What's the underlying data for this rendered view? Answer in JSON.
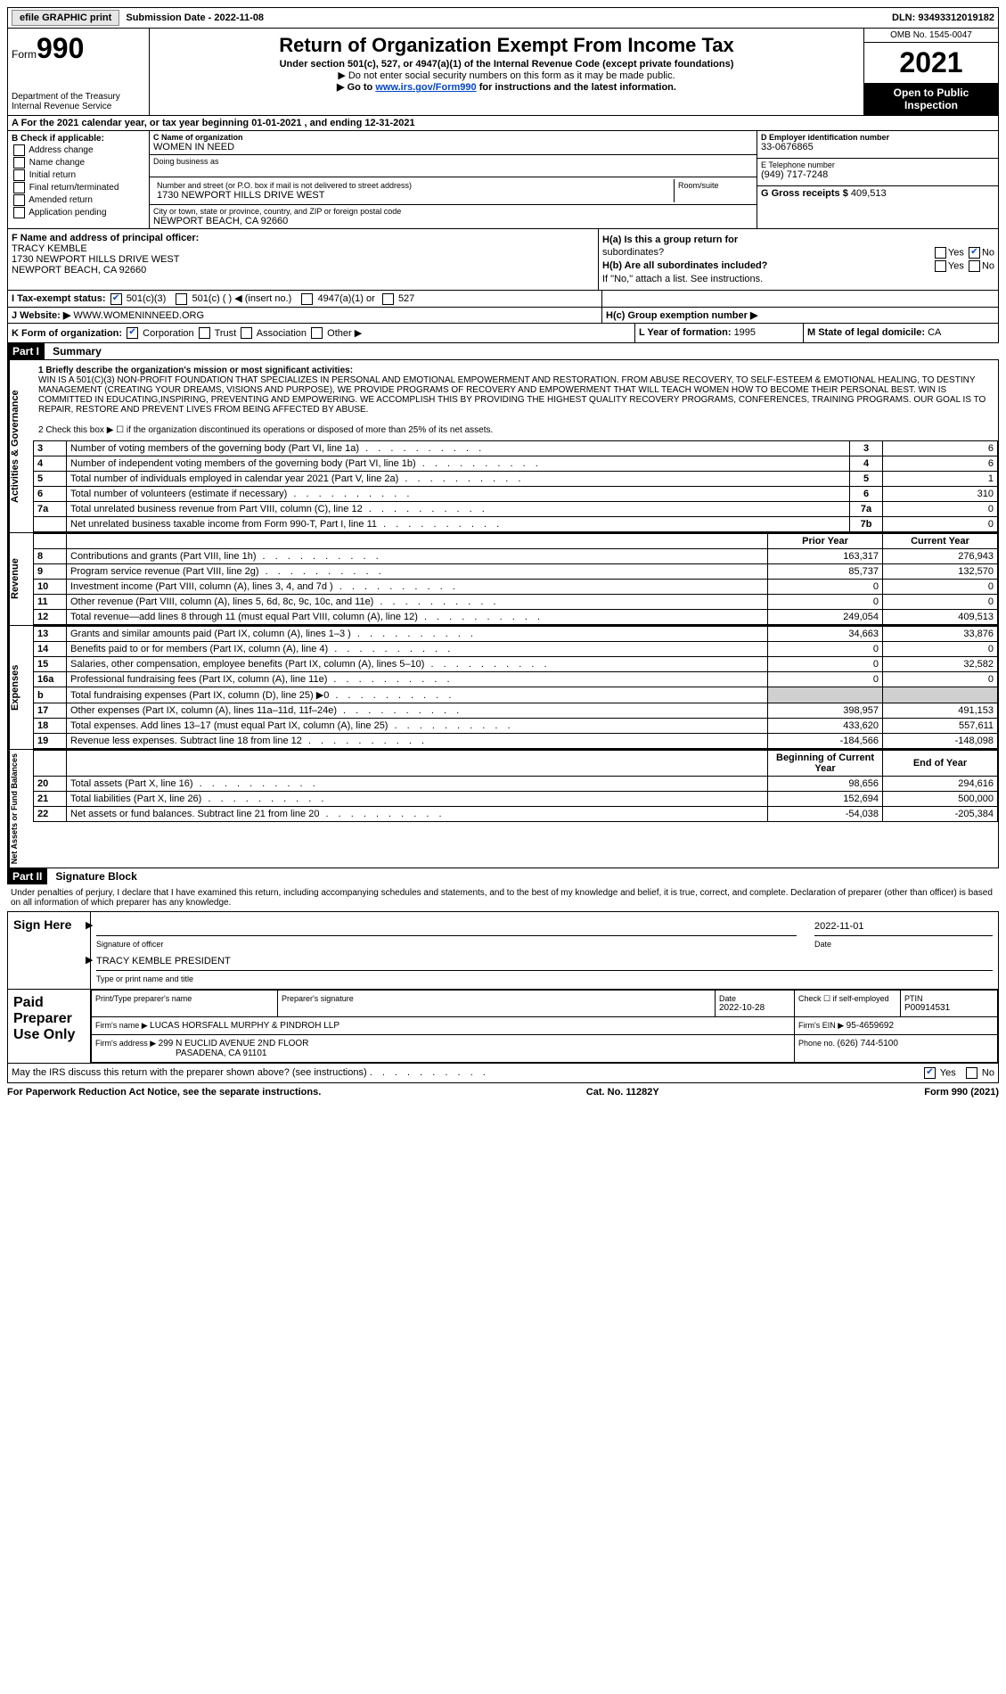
{
  "top_bar": {
    "efile": "efile GRAPHIC print",
    "submission_label": "Submission Date - ",
    "submission_date": "2022-11-08",
    "dln_label": "DLN: ",
    "dln": "93493312019182"
  },
  "header": {
    "form_label": "Form",
    "form_number": "990",
    "dept": "Department of the Treasury",
    "irs": "Internal Revenue Service",
    "title": "Return of Organization Exempt From Income Tax",
    "subtitle": "Under section 501(c), 527, or 4947(a)(1) of the Internal Revenue Code (except private foundations)",
    "note1": "▶ Do not enter social security numbers on this form as it may be made public.",
    "note2_pre": "▶ Go to ",
    "note2_link": "www.irs.gov/Form990",
    "note2_post": " for instructions and the latest information.",
    "omb": "OMB No. 1545-0047",
    "year": "2021",
    "inspection": "Open to Public Inspection"
  },
  "row_a": "A For the 2021 calendar year, or tax year beginning 01-01-2021   , and ending 12-31-2021",
  "col_b": {
    "label": "B Check if applicable:",
    "items": [
      "Address change",
      "Name change",
      "Initial return",
      "Final return/terminated",
      "Amended return",
      "Application pending"
    ]
  },
  "col_c": {
    "name_label": "C Name of organization",
    "name": "WOMEN IN NEED",
    "dba_label": "Doing business as",
    "dba": "",
    "addr_label": "Number and street (or P.O. box if mail is not delivered to street address)",
    "room_label": "Room/suite",
    "addr": "1730 NEWPORT HILLS DRIVE WEST",
    "city_label": "City or town, state or province, country, and ZIP or foreign postal code",
    "city": "NEWPORT BEACH, CA  92660"
  },
  "col_de": {
    "d_label": "D Employer identification number",
    "d_val": "33-0676865",
    "e_label": "E Telephone number",
    "e_val": "(949) 717-7248",
    "g_label": "G Gross receipts $ ",
    "g_val": "409,513"
  },
  "section_fh": {
    "f_label": "F Name and address of principal officer:",
    "f_name": "TRACY KEMBLE",
    "f_addr1": "1730 NEWPORT HILLS DRIVE WEST",
    "f_addr2": "NEWPORT BEACH, CA  92660",
    "ha_label": "H(a)  Is this a group return for",
    "ha_label2": "subordinates?",
    "hb_label": "H(b)  Are all subordinates included?",
    "hb_note": "If \"No,\" attach a list. See instructions."
  },
  "row_i": {
    "label": "I   Tax-exempt status:",
    "opt1": "501(c)(3)",
    "opt2": "501(c) (  ) ◀ (insert no.)",
    "opt3": "4947(a)(1) or",
    "opt4": "527"
  },
  "row_j": {
    "label": "J  Website: ▶",
    "val": "WWW.WOMENINNEED.ORG",
    "hc_label": "H(c)  Group exemption number ▶"
  },
  "row_klm": {
    "k_label": "K Form of organization:",
    "k_opts": [
      "Corporation",
      "Trust",
      "Association",
      "Other ▶"
    ],
    "l_label": "L Year of formation: ",
    "l_val": "1995",
    "m_label": "M State of legal domicile: ",
    "m_val": "CA"
  },
  "part1": {
    "header": "Part I",
    "title": "Summary",
    "mission_label": "1   Briefly describe the organization's mission or most significant activities:",
    "mission": "WIN IS A 501(C)(3) NON-PROFIT FOUNDATION THAT SPECIALIZES IN PERSONAL AND EMOTIONAL EMPOWERMENT AND RESTORATION. FROM ABUSE RECOVERY, TO SELF-ESTEEM & EMOTIONAL HEALING, TO DESTINY MANAGEMENT (CREATING YOUR DREAMS, VISIONS AND PURPOSE), WE PROVIDE PROGRAMS OF RECOVERY AND EMPOWERMENT THAT WILL TEACH WOMEN HOW TO BECOME THEIR PERSONAL BEST. WIN IS COMMITTED IN EDUCATING,INSPIRING, PREVENTING AND EMPOWERING. WE ACCOMPLISH THIS BY PROVIDING THE HIGHEST QUALITY RECOVERY PROGRAMS, CONFERENCES, TRAINING PROGRAMS. OUR GOAL IS TO REPAIR, RESTORE AND PREVENT LIVES FROM BEING AFFECTED BY ABUSE.",
    "line2": "2   Check this box ▶ ☐ if the organization discontinued its operations or disposed of more than 25% of its net assets.",
    "side_labels": {
      "activities": "Activities & Governance",
      "revenue": "Revenue",
      "expenses": "Expenses",
      "netassets": "Net Assets or Fund Balances"
    },
    "governance_rows": [
      {
        "n": "3",
        "desc": "Number of voting members of the governing body (Part VI, line 1a)",
        "box": "3",
        "val": "6"
      },
      {
        "n": "4",
        "desc": "Number of independent voting members of the governing body (Part VI, line 1b)",
        "box": "4",
        "val": "6"
      },
      {
        "n": "5",
        "desc": "Total number of individuals employed in calendar year 2021 (Part V, line 2a)",
        "box": "5",
        "val": "1"
      },
      {
        "n": "6",
        "desc": "Total number of volunteers (estimate if necessary)",
        "box": "6",
        "val": "310"
      },
      {
        "n": "7a",
        "desc": "Total unrelated business revenue from Part VIII, column (C), line 12",
        "box": "7a",
        "val": "0"
      },
      {
        "n": "",
        "desc": "Net unrelated business taxable income from Form 990-T, Part I, line 11",
        "box": "7b",
        "val": "0"
      }
    ],
    "prior_header": "Prior Year",
    "current_header": "Current Year",
    "revenue_rows": [
      {
        "n": "8",
        "desc": "Contributions and grants (Part VIII, line 1h)",
        "prior": "163,317",
        "curr": "276,943"
      },
      {
        "n": "9",
        "desc": "Program service revenue (Part VIII, line 2g)",
        "prior": "85,737",
        "curr": "132,570"
      },
      {
        "n": "10",
        "desc": "Investment income (Part VIII, column (A), lines 3, 4, and 7d )",
        "prior": "0",
        "curr": "0"
      },
      {
        "n": "11",
        "desc": "Other revenue (Part VIII, column (A), lines 5, 6d, 8c, 9c, 10c, and 11e)",
        "prior": "0",
        "curr": "0"
      },
      {
        "n": "12",
        "desc": "Total revenue—add lines 8 through 11 (must equal Part VIII, column (A), line 12)",
        "prior": "249,054",
        "curr": "409,513"
      }
    ],
    "expense_rows": [
      {
        "n": "13",
        "desc": "Grants and similar amounts paid (Part IX, column (A), lines 1–3 )",
        "prior": "34,663",
        "curr": "33,876"
      },
      {
        "n": "14",
        "desc": "Benefits paid to or for members (Part IX, column (A), line 4)",
        "prior": "0",
        "curr": "0"
      },
      {
        "n": "15",
        "desc": "Salaries, other compensation, employee benefits (Part IX, column (A), lines 5–10)",
        "prior": "0",
        "curr": "32,582"
      },
      {
        "n": "16a",
        "desc": "Professional fundraising fees (Part IX, column (A), line 11e)",
        "prior": "0",
        "curr": "0"
      },
      {
        "n": "b",
        "desc": "Total fundraising expenses (Part IX, column (D), line 25) ▶0",
        "prior": "",
        "curr": "",
        "grey": true
      },
      {
        "n": "17",
        "desc": "Other expenses (Part IX, column (A), lines 11a–11d, 11f–24e)",
        "prior": "398,957",
        "curr": "491,153"
      },
      {
        "n": "18",
        "desc": "Total expenses. Add lines 13–17 (must equal Part IX, column (A), line 25)",
        "prior": "433,620",
        "curr": "557,611"
      },
      {
        "n": "19",
        "desc": "Revenue less expenses. Subtract line 18 from line 12",
        "prior": "-184,566",
        "curr": "-148,098"
      }
    ],
    "begin_header": "Beginning of Current Year",
    "end_header": "End of Year",
    "netasset_rows": [
      {
        "n": "20",
        "desc": "Total assets (Part X, line 16)",
        "prior": "98,656",
        "curr": "294,616"
      },
      {
        "n": "21",
        "desc": "Total liabilities (Part X, line 26)",
        "prior": "152,694",
        "curr": "500,000"
      },
      {
        "n": "22",
        "desc": "Net assets or fund balances. Subtract line 21 from line 20",
        "prior": "-54,038",
        "curr": "-205,384"
      }
    ]
  },
  "part2": {
    "header": "Part II",
    "title": "Signature Block",
    "decl": "Under penalties of perjury, I declare that I have examined this return, including accompanying schedules and statements, and to the best of my knowledge and belief, it is true, correct, and complete. Declaration of preparer (other than officer) is based on all information of which preparer has any knowledge.",
    "sign_here": "Sign Here",
    "sig_officer": "Signature of officer",
    "sig_date_label": "Date",
    "sig_date": "2022-11-01",
    "officer_name": "TRACY KEMBLE  PRESIDENT",
    "officer_name_label": "Type or print name and title",
    "paid": "Paid Preparer Use Only",
    "prep_name_label": "Print/Type preparer's name",
    "prep_sig_label": "Preparer's signature",
    "prep_date_label": "Date",
    "prep_date": "2022-10-28",
    "self_emp": "Check ☐ if self-employed",
    "ptin_label": "PTIN",
    "ptin": "P00914531",
    "firm_name_label": "Firm's name   ▶ ",
    "firm_name": "LUCAS HORSFALL MURPHY & PINDROH LLP",
    "firm_ein_label": "Firm's EIN ▶ ",
    "firm_ein": "95-4659692",
    "firm_addr_label": "Firm's address ▶ ",
    "firm_addr1": "299 N EUCLID AVENUE 2ND FLOOR",
    "firm_addr2": "PASADENA, CA  91101",
    "phone_label": "Phone no. ",
    "phone": "(626) 744-5100",
    "discuss": "May the IRS discuss this return with the preparer shown above? (see instructions)"
  },
  "footer": {
    "left": "For Paperwork Reduction Act Notice, see the separate instructions.",
    "mid": "Cat. No. 11282Y",
    "right": "Form 990 (2021)"
  }
}
